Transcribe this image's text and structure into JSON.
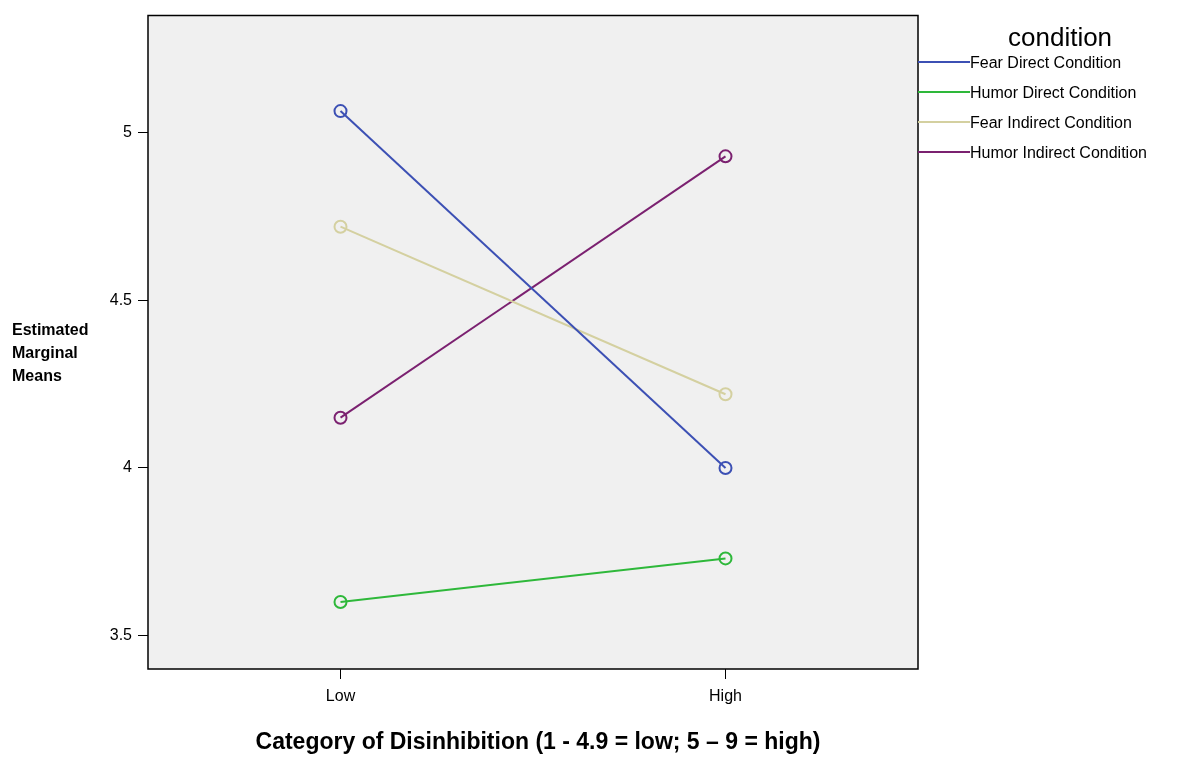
{
  "chart_data": {
    "type": "line",
    "xlabel": "Category of Disinhibition  (1 - 4.9 = low;  5 – 9 = high)",
    "ylabel": "Estimated Marginal Means",
    "legend_title": "condition",
    "categories": [
      "Low",
      "High"
    ],
    "series": [
      {
        "name": "Fear Direct Condition",
        "color": "#3c50b4",
        "values": [
          5.065,
          4.0
        ]
      },
      {
        "name": "Humor Direct Condition",
        "color": "#2eb83a",
        "values": [
          3.6,
          3.73
        ]
      },
      {
        "name": "Fear Indirect Condition",
        "color": "#d4d0a0",
        "values": [
          4.72,
          4.22
        ]
      },
      {
        "name": "Humor Indirect Condition",
        "color": "#7b2170",
        "values": [
          4.15,
          4.93
        ]
      }
    ],
    "ylim": [
      3.4,
      5.35
    ],
    "yticks": [
      3.5,
      4.5,
      4,
      5
    ],
    "legend": "right",
    "marker": "circle",
    "line_style": "solid"
  }
}
